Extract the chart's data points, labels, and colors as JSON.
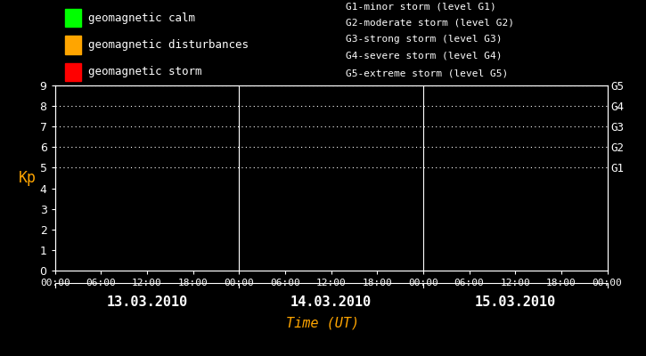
{
  "background_color": "#000000",
  "text_color": "#ffffff",
  "title_color": "#ffa500",
  "title": "Time (UT)",
  "ylabel": "Kp",
  "ylabel_color": "#ffa500",
  "ylim": [
    0,
    9
  ],
  "yticks": [
    0,
    1,
    2,
    3,
    4,
    5,
    6,
    7,
    8,
    9
  ],
  "dotted_levels": [
    5,
    6,
    7,
    8,
    9
  ],
  "right_labels": [
    "G1",
    "G2",
    "G3",
    "G4",
    "G5"
  ],
  "right_label_yvals": [
    5,
    6,
    7,
    8,
    9
  ],
  "days": [
    "13.03.2010",
    "14.03.2010",
    "15.03.2010"
  ],
  "xtick_labels": [
    "00:00",
    "06:00",
    "12:00",
    "18:00",
    "00:00",
    "06:00",
    "12:00",
    "18:00",
    "00:00",
    "06:00",
    "12:00",
    "18:00",
    "00:00"
  ],
  "n_ticks_per_day": 4,
  "n_days": 3,
  "legend_items": [
    {
      "label": "geomagnetic calm",
      "color": "#00ff00"
    },
    {
      "label": "geomagnetic disturbances",
      "color": "#ffa500"
    },
    {
      "label": "geomagnetic storm",
      "color": "#ff0000"
    }
  ],
  "storm_levels_text": [
    "G1-minor storm (level G1)",
    "G2-moderate storm (level G2)",
    "G3-strong storm (level G3)",
    "G4-severe storm (level G4)",
    "G5-extreme storm (level G5)"
  ],
  "font_family": "monospace",
  "legend_square_size": 12,
  "legend_fontsize": 9,
  "storm_fontsize": 8,
  "ytick_fontsize": 9,
  "xtick_fontsize": 8,
  "ylabel_fontsize": 12,
  "day_label_fontsize": 11,
  "title_fontsize": 11
}
